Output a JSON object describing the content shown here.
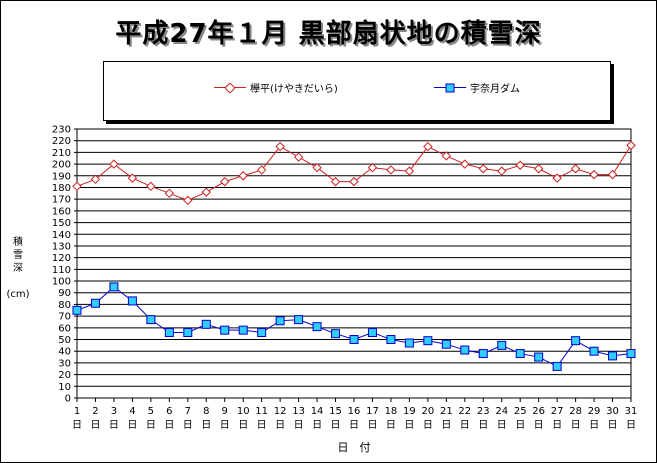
{
  "title": "平成27年１月  黒部扇状地の積雪深",
  "ylabel": "積\n雪\n深\n\n(cm)",
  "xlabel": "日　付",
  "day_suffix": "日",
  "colors": {
    "keyakidaira": "#cc2222",
    "unazuki": "#0000cc",
    "unazuki_fill": "#33ccff"
  },
  "legend": [
    {
      "name": "欅平(けやきだいら)",
      "marker": "diamond-icon"
    },
    {
      "name": "宇奈月ダム",
      "marker": "square-icon"
    }
  ],
  "chart_data": {
    "type": "line",
    "title": "平成27年１月  黒部扇状地の積雪深",
    "xlabel": "日　付",
    "ylabel": "積雪深 (cm)",
    "ylim": [
      0,
      230
    ],
    "ytick_step": 10,
    "grid": true,
    "legend_position": "top",
    "x": [
      1,
      2,
      3,
      4,
      5,
      6,
      7,
      8,
      9,
      10,
      11,
      12,
      13,
      14,
      15,
      16,
      17,
      18,
      19,
      20,
      21,
      22,
      23,
      24,
      25,
      26,
      27,
      28,
      29,
      30,
      31
    ],
    "series": [
      {
        "name": "欅平(けやきだいら)",
        "values": [
          181,
          187,
          200,
          188,
          181,
          175,
          169,
          176,
          185,
          190,
          195,
          215,
          206,
          197,
          185,
          185,
          197,
          195,
          194,
          215,
          207,
          200,
          196,
          194,
          199,
          196,
          188,
          196,
          191,
          191,
          216
        ]
      },
      {
        "name": "宇奈月ダム",
        "values": [
          75,
          81,
          95,
          83,
          67,
          56,
          56,
          63,
          58,
          58,
          56,
          66,
          67,
          61,
          55,
          50,
          56,
          50,
          47,
          49,
          46,
          41,
          38,
          45,
          38,
          35,
          27,
          49,
          40,
          36,
          38
        ]
      }
    ]
  }
}
